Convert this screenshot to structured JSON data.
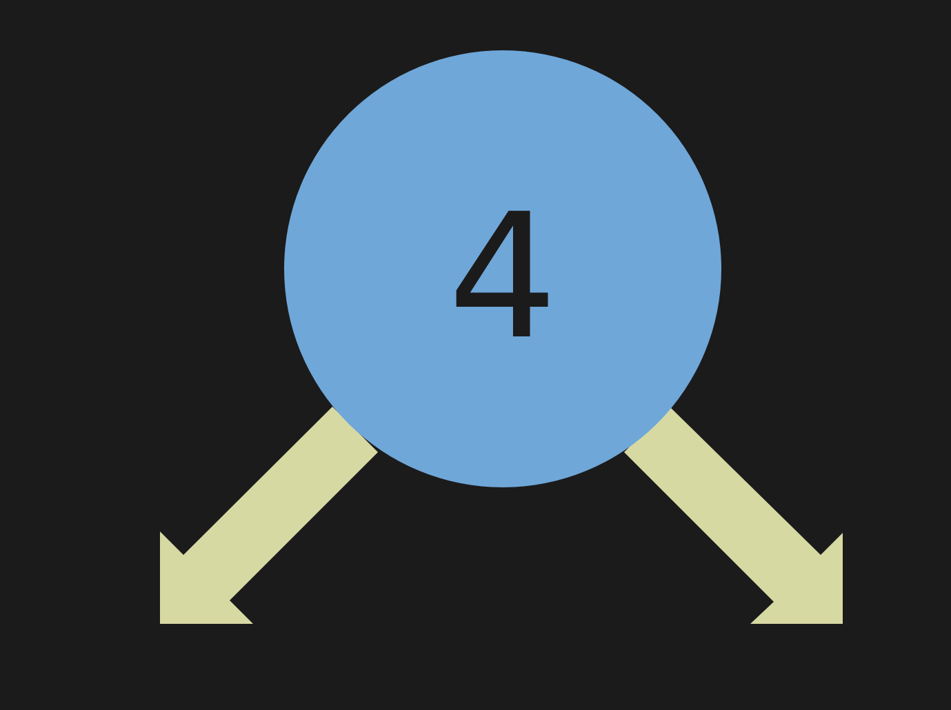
{
  "diagram": {
    "background_color": "#1b1b1b",
    "node": {
      "label": "4",
      "fill_color": "#6fa7d9",
      "text_color": "#1b1b1b"
    },
    "edges": [
      {
        "direction": "down-left",
        "color": "#d7d9a3",
        "icon": "arrow-down-left-icon"
      },
      {
        "direction": "down-right",
        "color": "#d7d9a3",
        "icon": "arrow-down-right-icon"
      }
    ]
  }
}
